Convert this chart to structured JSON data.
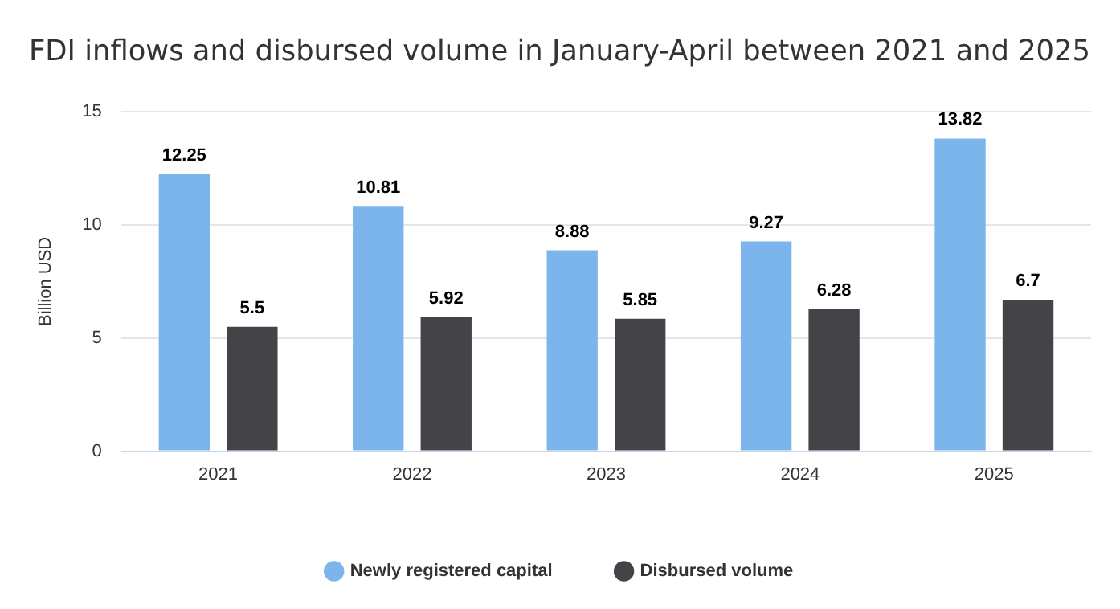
{
  "chart_data": {
    "type": "bar",
    "title": "FDI inflows and disbursed volume in January-April between 2021 and 2025",
    "ylabel": "Billion USD",
    "categories": [
      "2021",
      "2022",
      "2023",
      "2024",
      "2025"
    ],
    "series": [
      {
        "name": "Newly registered capital",
        "color": "#7cb5ec",
        "values": [
          12.25,
          10.81,
          8.88,
          9.27,
          13.82
        ]
      },
      {
        "name": "Disbursed volume",
        "color": "#434348",
        "values": [
          5.5,
          5.92,
          5.85,
          6.28,
          6.7
        ]
      }
    ],
    "ylim": [
      0,
      15
    ],
    "yticks": [
      0,
      5,
      10,
      15
    ],
    "grid": "y",
    "legend": "bottom",
    "data_labels": true
  }
}
